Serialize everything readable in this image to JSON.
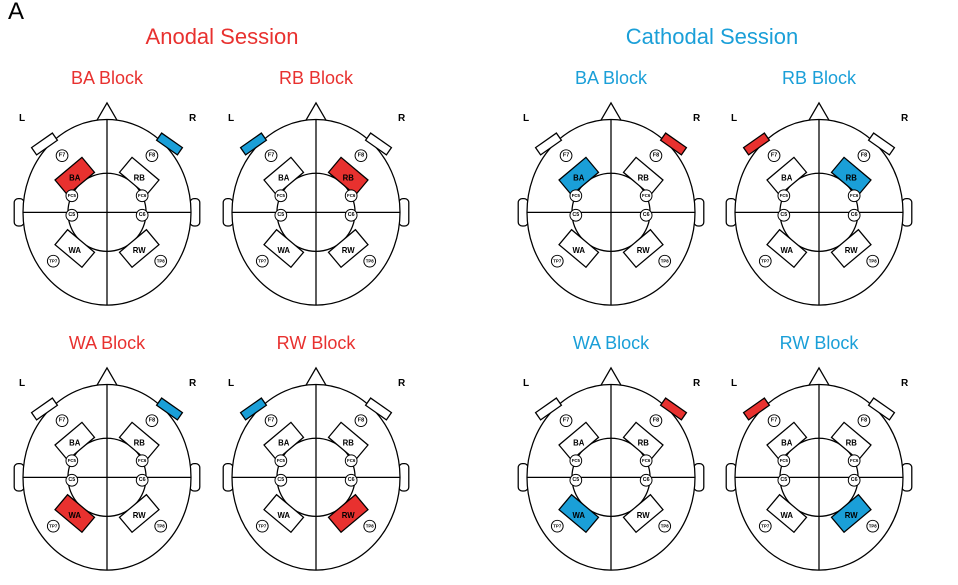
{
  "figure": {
    "panel_letter": "A",
    "colors": {
      "anode": "#e8312f",
      "cathode": "#1a9fd8",
      "line": "#000000",
      "fill": "#ffffff"
    },
    "sessions": [
      {
        "title": "Anodal Session",
        "title_color": "#e8312f",
        "blocks": [
          {
            "title": "BA Block",
            "left_label": "L",
            "right_label": "R",
            "regions": {
              "BA": "anode",
              "RB": "none",
              "WA": "none",
              "RW": "none"
            },
            "pads": {
              "left": "none",
              "right": "cathode"
            }
          },
          {
            "title": "RB Block",
            "left_label": "L",
            "right_label": "R",
            "regions": {
              "BA": "none",
              "RB": "anode",
              "WA": "none",
              "RW": "none"
            },
            "pads": {
              "left": "cathode",
              "right": "none"
            }
          },
          {
            "title": "WA Block",
            "left_label": "L",
            "right_label": "R",
            "regions": {
              "BA": "none",
              "RB": "none",
              "WA": "anode",
              "RW": "none"
            },
            "pads": {
              "left": "none",
              "right": "cathode"
            }
          },
          {
            "title": "RW Block",
            "left_label": "L",
            "right_label": "R",
            "regions": {
              "BA": "none",
              "RB": "none",
              "WA": "none",
              "RW": "anode"
            },
            "pads": {
              "left": "cathode",
              "right": "none"
            }
          }
        ]
      },
      {
        "title": "Cathodal Session",
        "title_color": "#1a9fd8",
        "blocks": [
          {
            "title": "BA Block",
            "left_label": "L",
            "right_label": "R",
            "regions": {
              "BA": "cathode",
              "RB": "none",
              "WA": "none",
              "RW": "none"
            },
            "pads": {
              "left": "none",
              "right": "anode"
            }
          },
          {
            "title": "RB Block",
            "left_label": "L",
            "right_label": "R",
            "regions": {
              "BA": "none",
              "RB": "cathode",
              "WA": "none",
              "RW": "none"
            },
            "pads": {
              "left": "anode",
              "right": "none"
            }
          },
          {
            "title": "WA Block",
            "left_label": "L",
            "right_label": "R",
            "regions": {
              "BA": "none",
              "RB": "none",
              "WA": "cathode",
              "RW": "none"
            },
            "pads": {
              "left": "none",
              "right": "anode"
            }
          },
          {
            "title": "RW Block",
            "left_label": "L",
            "right_label": "R",
            "regions": {
              "BA": "none",
              "RB": "none",
              "WA": "none",
              "RW": "cathode"
            },
            "pads": {
              "left": "anode",
              "right": "none"
            }
          }
        ]
      }
    ],
    "electrodes": [
      "F7",
      "F8",
      "FC5",
      "FC6",
      "C5",
      "C6",
      "TP7",
      "TP8"
    ]
  }
}
